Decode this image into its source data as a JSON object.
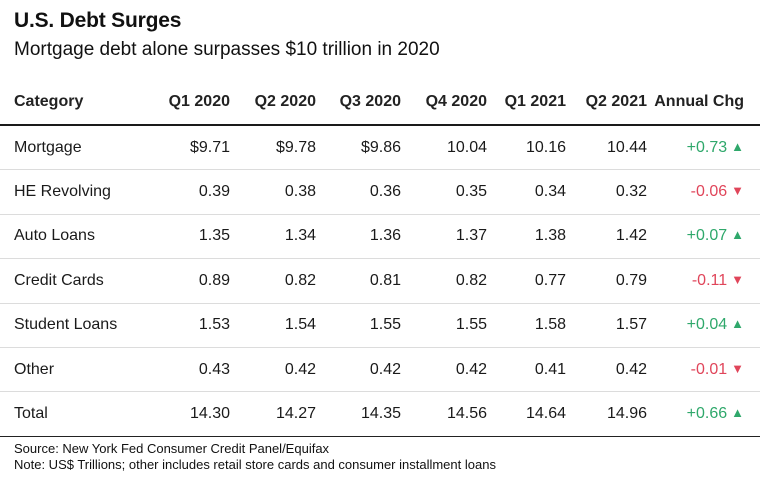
{
  "header": {
    "title": "U.S. Debt Surges",
    "subtitle": "Mortgage debt alone surpasses $10 trillion in 2020"
  },
  "chart_data": {
    "type": "table",
    "title": "U.S. Debt Surges",
    "subtitle": "Mortgage debt alone surpasses $10 trillion in 2020",
    "columns": [
      "Category",
      "Q1 2020",
      "Q2 2020",
      "Q3 2020",
      "Q4 2020",
      "Q1 2021",
      "Q2 2021",
      "Annual Chg"
    ],
    "rows": [
      {
        "category": "Mortgage",
        "values": [
          "$9.71",
          "$9.78",
          "$9.86",
          "10.04",
          "10.16",
          "10.44"
        ],
        "change": "+0.73",
        "direction": "up"
      },
      {
        "category": "HE Revolving",
        "values": [
          "0.39",
          "0.38",
          "0.36",
          "0.35",
          "0.34",
          "0.32"
        ],
        "change": "-0.06",
        "direction": "down"
      },
      {
        "category": "Auto Loans",
        "values": [
          "1.35",
          "1.34",
          "1.36",
          "1.37",
          "1.38",
          "1.42"
        ],
        "change": "+0.07",
        "direction": "up"
      },
      {
        "category": "Credit Cards",
        "values": [
          "0.89",
          "0.82",
          "0.81",
          "0.82",
          "0.77",
          "0.79"
        ],
        "change": "-0.11",
        "direction": "down"
      },
      {
        "category": "Student Loans",
        "values": [
          "1.53",
          "1.54",
          "1.55",
          "1.55",
          "1.58",
          "1.57"
        ],
        "change": "+0.04",
        "direction": "up"
      },
      {
        "category": "Other",
        "values": [
          "0.43",
          "0.42",
          "0.42",
          "0.42",
          "0.41",
          "0.42"
        ],
        "change": "-0.01",
        "direction": "down"
      },
      {
        "category": "Total",
        "values": [
          "14.30",
          "14.27",
          "14.35",
          "14.56",
          "14.64",
          "14.96"
        ],
        "change": "+0.66",
        "direction": "up"
      }
    ],
    "up_symbol": "▲",
    "down_symbol": "▼",
    "colors": {
      "up": "#2fa86b",
      "down": "#e0455a"
    }
  },
  "footer": {
    "source": "Source: New York Fed Consumer Credit Panel/Equifax",
    "note": "Note: US$ Trillions; other includes retail store cards and consumer installment loans"
  }
}
